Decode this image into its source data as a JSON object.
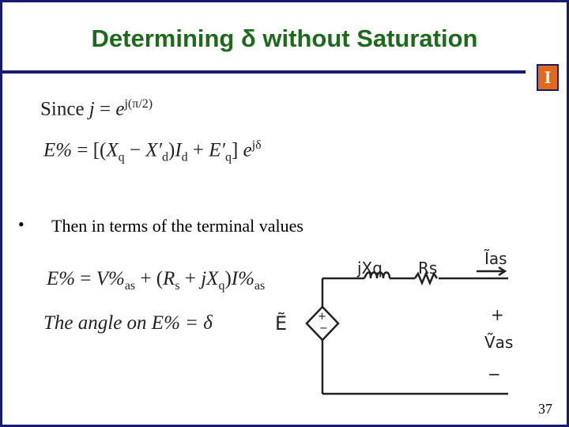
{
  "slide": {
    "title": "Determining δ without Saturation",
    "equations": [
      [
        {
          "text": "Since "
        },
        {
          "text": "j",
          "style": "italic"
        },
        {
          "text": " = "
        },
        {
          "text": "e",
          "style": "italic"
        },
        {
          "text": "j(π/2)",
          "pos": "sup"
        }
      ],
      [
        {
          "text": "E%",
          "style": "italic"
        },
        {
          "text": " = [("
        },
        {
          "text": "X",
          "style": "italic"
        },
        {
          "text": "q",
          "pos": "sub"
        },
        {
          "text": " − "
        },
        {
          "text": "X′",
          "style": "italic"
        },
        {
          "text": "d",
          "pos": "sub"
        },
        {
          "text": ")"
        },
        {
          "text": "I",
          "style": "italic"
        },
        {
          "text": "d",
          "pos": "sub"
        },
        {
          "text": " + "
        },
        {
          "text": "E′",
          "style": "italic"
        },
        {
          "text": "q",
          "pos": "sub"
        },
        {
          "text": "] "
        },
        {
          "text": "e",
          "style": "italic"
        },
        {
          "text": "jδ",
          "pos": "sup"
        }
      ],
      [
        {
          "text": "E%",
          "style": "italic"
        },
        {
          "text": " = "
        },
        {
          "text": "V%",
          "style": "italic"
        },
        {
          "text": "as",
          "pos": "sub"
        },
        {
          "text": " + ("
        },
        {
          "text": "R",
          "style": "italic"
        },
        {
          "text": "s",
          "pos": "sub"
        },
        {
          "text": " + "
        },
        {
          "text": "jX",
          "style": "italic"
        },
        {
          "text": "q",
          "pos": "sub"
        },
        {
          "text": ")"
        },
        {
          "text": "I%",
          "style": "italic"
        },
        {
          "text": "as",
          "pos": "sub"
        }
      ],
      [
        {
          "text": "The angle on E% = δ",
          "style": "italic"
        }
      ]
    ],
    "bullet": "Then in terms of the terminal values",
    "circuit": {
      "inductor": "jXq",
      "resistor": "Rs",
      "current": "Ĩas",
      "plus": "+",
      "voltage": "Ṽas",
      "minus": "−",
      "source": "Ẽ",
      "source_plus": "+",
      "source_minus": "−"
    },
    "page_number": "37"
  }
}
